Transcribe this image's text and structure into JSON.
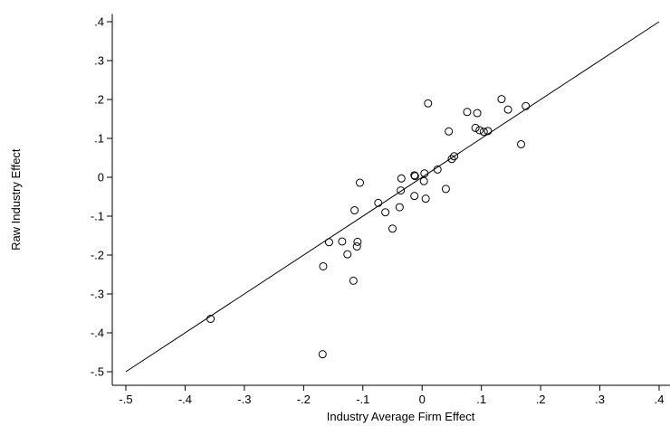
{
  "chart_data": {
    "type": "scatter",
    "title": "",
    "xlabel": "Industry Average Firm Effect",
    "ylabel": "Raw Industry Effect",
    "xlim": [
      -0.52,
      0.42
    ],
    "ylim": [
      -0.53,
      0.42
    ],
    "x_ticks": [
      -0.5,
      -0.4,
      -0.3,
      -0.2,
      -0.1,
      0,
      0.1,
      0.2,
      0.3,
      0.4
    ],
    "x_tick_labels": [
      "-.5",
      "-.4",
      "-.3",
      "-.2",
      "-.1",
      "0",
      ".1",
      ".2",
      ".3",
      ".4"
    ],
    "y_ticks": [
      -0.5,
      -0.4,
      -0.3,
      -0.2,
      -0.1,
      0,
      0.1,
      0.2,
      0.3,
      0.4
    ],
    "y_tick_labels": [
      "-.5",
      "-.4",
      "-.3",
      "-.2",
      "-.1",
      "0",
      ".1",
      ".2",
      ".3",
      ".4"
    ],
    "grid": false,
    "marker": "hollow-circle",
    "fit_line": {
      "x": [
        -0.5,
        0.4
      ],
      "y": [
        -0.5,
        0.4
      ]
    },
    "points": [
      {
        "x": -0.357,
        "y": -0.364
      },
      {
        "x": -0.168,
        "y": -0.455
      },
      {
        "x": -0.167,
        "y": -0.229
      },
      {
        "x": -0.157,
        "y": -0.167
      },
      {
        "x": -0.135,
        "y": -0.165
      },
      {
        "x": -0.126,
        "y": -0.198
      },
      {
        "x": -0.116,
        "y": -0.266
      },
      {
        "x": -0.114,
        "y": -0.085
      },
      {
        "x": -0.11,
        "y": -0.178
      },
      {
        "x": -0.109,
        "y": -0.166
      },
      {
        "x": -0.105,
        "y": -0.014
      },
      {
        "x": -0.074,
        "y": -0.066
      },
      {
        "x": -0.062,
        "y": -0.09
      },
      {
        "x": -0.05,
        "y": -0.132
      },
      {
        "x": -0.038,
        "y": -0.077
      },
      {
        "x": -0.036,
        "y": -0.034
      },
      {
        "x": -0.035,
        "y": -0.003
      },
      {
        "x": -0.013,
        "y": 0.005
      },
      {
        "x": -0.012,
        "y": 0.003
      },
      {
        "x": -0.013,
        "y": -0.048
      },
      {
        "x": 0.003,
        "y": -0.01
      },
      {
        "x": 0.004,
        "y": 0.01
      },
      {
        "x": 0.006,
        "y": -0.055
      },
      {
        "x": 0.01,
        "y": 0.19
      },
      {
        "x": 0.026,
        "y": 0.02
      },
      {
        "x": 0.04,
        "y": -0.03
      },
      {
        "x": 0.045,
        "y": 0.118
      },
      {
        "x": 0.05,
        "y": 0.047
      },
      {
        "x": 0.054,
        "y": 0.054
      },
      {
        "x": 0.076,
        "y": 0.168
      },
      {
        "x": 0.09,
        "y": 0.127
      },
      {
        "x": 0.093,
        "y": 0.165
      },
      {
        "x": 0.097,
        "y": 0.121
      },
      {
        "x": 0.104,
        "y": 0.117
      },
      {
        "x": 0.111,
        "y": 0.119
      },
      {
        "x": 0.134,
        "y": 0.201
      },
      {
        "x": 0.145,
        "y": 0.174
      },
      {
        "x": 0.167,
        "y": 0.085
      },
      {
        "x": 0.175,
        "y": 0.183
      }
    ]
  }
}
